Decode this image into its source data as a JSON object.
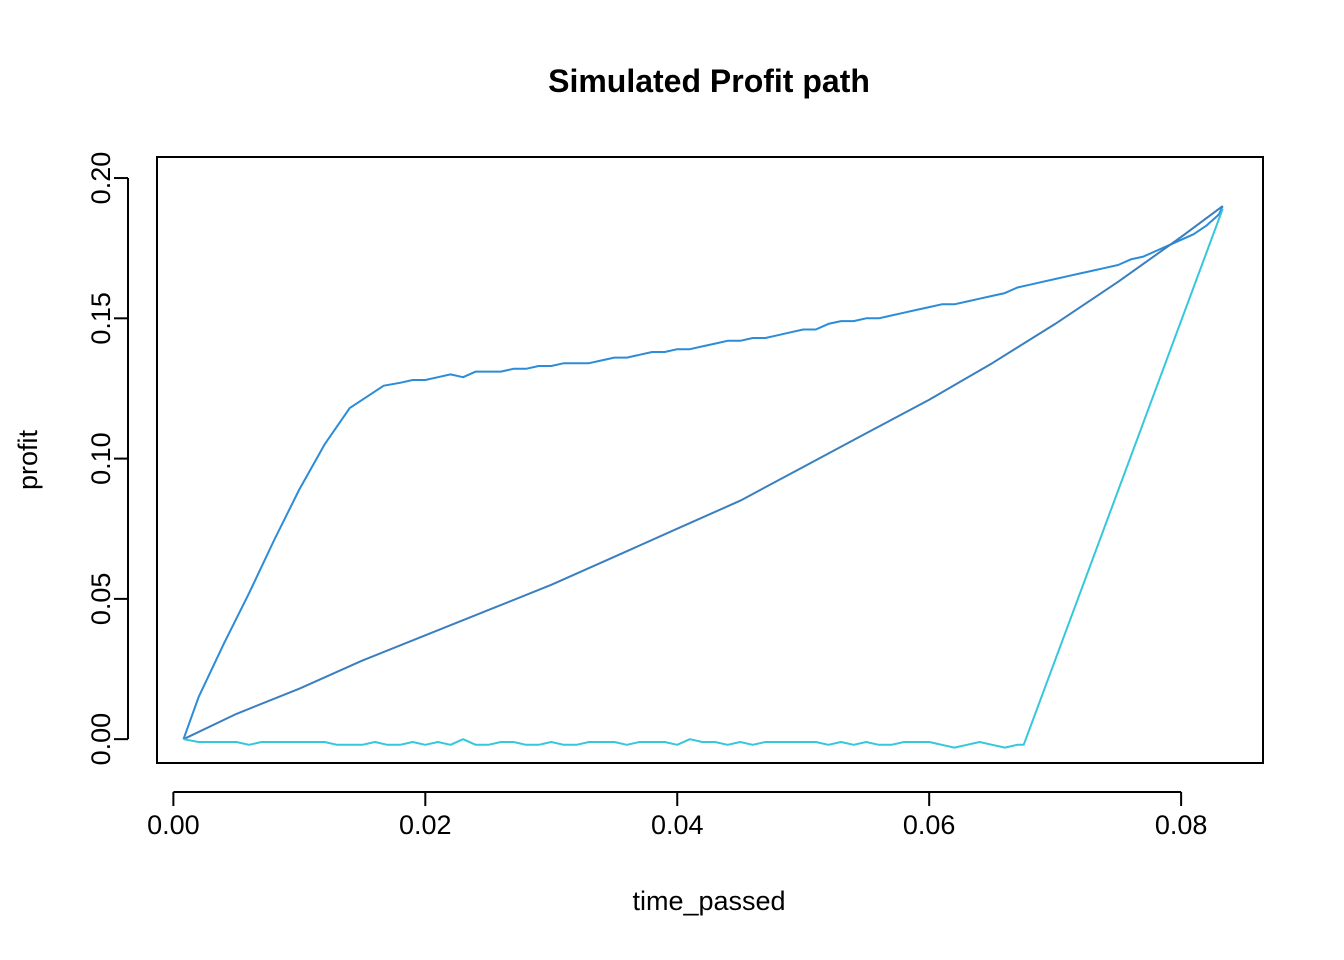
{
  "chart_data": {
    "type": "line",
    "title": "Simulated Profit path",
    "xlabel": "time_passed",
    "ylabel": "profit",
    "xlim": [
      -0.0013,
      0.0865
    ],
    "ylim": [
      -0.0085,
      0.2075
    ],
    "x_ticks": [
      0.0,
      0.02,
      0.04,
      0.06,
      0.08
    ],
    "x_tick_labels": [
      "0.00",
      "0.02",
      "0.04",
      "0.06",
      "0.08"
    ],
    "y_ticks": [
      0.0,
      0.05,
      0.1,
      0.15,
      0.2
    ],
    "y_tick_labels": [
      "0.00",
      "0.05",
      "0.10",
      "0.15",
      "0.20"
    ],
    "grid": false,
    "legend": "none",
    "series": [
      {
        "color": "#2b8cd9",
        "x": [
          0.0008,
          0.002,
          0.004,
          0.006,
          0.008,
          0.01,
          0.012,
          0.014,
          0.0167,
          0.018,
          0.019,
          0.02,
          0.021,
          0.022,
          0.023,
          0.024,
          0.025,
          0.026,
          0.027,
          0.028,
          0.029,
          0.03,
          0.031,
          0.032,
          0.033,
          0.034,
          0.035,
          0.036,
          0.037,
          0.038,
          0.039,
          0.04,
          0.041,
          0.042,
          0.043,
          0.044,
          0.045,
          0.046,
          0.047,
          0.048,
          0.049,
          0.05,
          0.051,
          0.0515,
          0.052,
          0.053,
          0.054,
          0.055,
          0.056,
          0.057,
          0.058,
          0.059,
          0.06,
          0.061,
          0.062,
          0.063,
          0.064,
          0.065,
          0.066,
          0.067,
          0.068,
          0.069,
          0.07,
          0.071,
          0.072,
          0.073,
          0.074,
          0.075,
          0.076,
          0.077,
          0.078,
          0.079,
          0.08,
          0.081,
          0.082,
          0.083,
          0.0833
        ],
        "y": [
          0.0,
          0.015,
          0.034,
          0.052,
          0.071,
          0.089,
          0.105,
          0.118,
          0.126,
          0.127,
          0.128,
          0.128,
          0.129,
          0.13,
          0.129,
          0.131,
          0.131,
          0.131,
          0.132,
          0.132,
          0.133,
          0.133,
          0.134,
          0.134,
          0.134,
          0.135,
          0.136,
          0.136,
          0.137,
          0.138,
          0.138,
          0.139,
          0.139,
          0.14,
          0.141,
          0.142,
          0.142,
          0.143,
          0.143,
          0.144,
          0.145,
          0.146,
          0.146,
          0.147,
          0.148,
          0.149,
          0.149,
          0.15,
          0.15,
          0.151,
          0.152,
          0.153,
          0.154,
          0.155,
          0.155,
          0.156,
          0.157,
          0.158,
          0.159,
          0.161,
          0.162,
          0.163,
          0.164,
          0.165,
          0.166,
          0.167,
          0.168,
          0.169,
          0.171,
          0.172,
          0.174,
          0.176,
          0.178,
          0.18,
          0.183,
          0.187,
          0.19
        ]
      },
      {
        "color": "#3a7fbf",
        "x": [
          0.0008,
          0.005,
          0.01,
          0.015,
          0.02,
          0.025,
          0.03,
          0.035,
          0.04,
          0.045,
          0.05,
          0.055,
          0.06,
          0.065,
          0.07,
          0.075,
          0.08,
          0.0833
        ],
        "y": [
          0.0,
          0.009,
          0.018,
          0.028,
          0.037,
          0.046,
          0.055,
          0.065,
          0.075,
          0.085,
          0.097,
          0.109,
          0.121,
          0.134,
          0.148,
          0.163,
          0.179,
          0.19
        ]
      },
      {
        "color": "#35c7dc",
        "x": [
          0.0008,
          0.002,
          0.003,
          0.004,
          0.005,
          0.006,
          0.007,
          0.008,
          0.009,
          0.01,
          0.011,
          0.012,
          0.013,
          0.014,
          0.015,
          0.016,
          0.017,
          0.018,
          0.019,
          0.02,
          0.021,
          0.022,
          0.023,
          0.024,
          0.025,
          0.026,
          0.027,
          0.028,
          0.029,
          0.03,
          0.031,
          0.032,
          0.033,
          0.034,
          0.035,
          0.036,
          0.037,
          0.038,
          0.039,
          0.04,
          0.041,
          0.042,
          0.043,
          0.044,
          0.045,
          0.046,
          0.047,
          0.048,
          0.049,
          0.05,
          0.051,
          0.052,
          0.053,
          0.054,
          0.055,
          0.056,
          0.057,
          0.058,
          0.059,
          0.06,
          0.061,
          0.062,
          0.063,
          0.064,
          0.065,
          0.066,
          0.067,
          0.0675,
          0.0833
        ],
        "y": [
          0.0,
          -0.001,
          -0.001,
          -0.001,
          -0.001,
          -0.002,
          -0.001,
          -0.001,
          -0.001,
          -0.001,
          -0.001,
          -0.001,
          -0.002,
          -0.002,
          -0.002,
          -0.001,
          -0.002,
          -0.002,
          -0.001,
          -0.002,
          -0.001,
          -0.002,
          0.0,
          -0.002,
          -0.002,
          -0.001,
          -0.001,
          -0.002,
          -0.002,
          -0.001,
          -0.002,
          -0.002,
          -0.001,
          -0.001,
          -0.001,
          -0.002,
          -0.001,
          -0.001,
          -0.001,
          -0.002,
          0.0,
          -0.001,
          -0.001,
          -0.002,
          -0.001,
          -0.002,
          -0.001,
          -0.001,
          -0.001,
          -0.001,
          -0.001,
          -0.002,
          -0.001,
          -0.002,
          -0.001,
          -0.002,
          -0.002,
          -0.001,
          -0.001,
          -0.001,
          -0.002,
          -0.003,
          -0.002,
          -0.001,
          -0.002,
          -0.003,
          -0.002,
          -0.002,
          0.189
        ]
      }
    ]
  }
}
